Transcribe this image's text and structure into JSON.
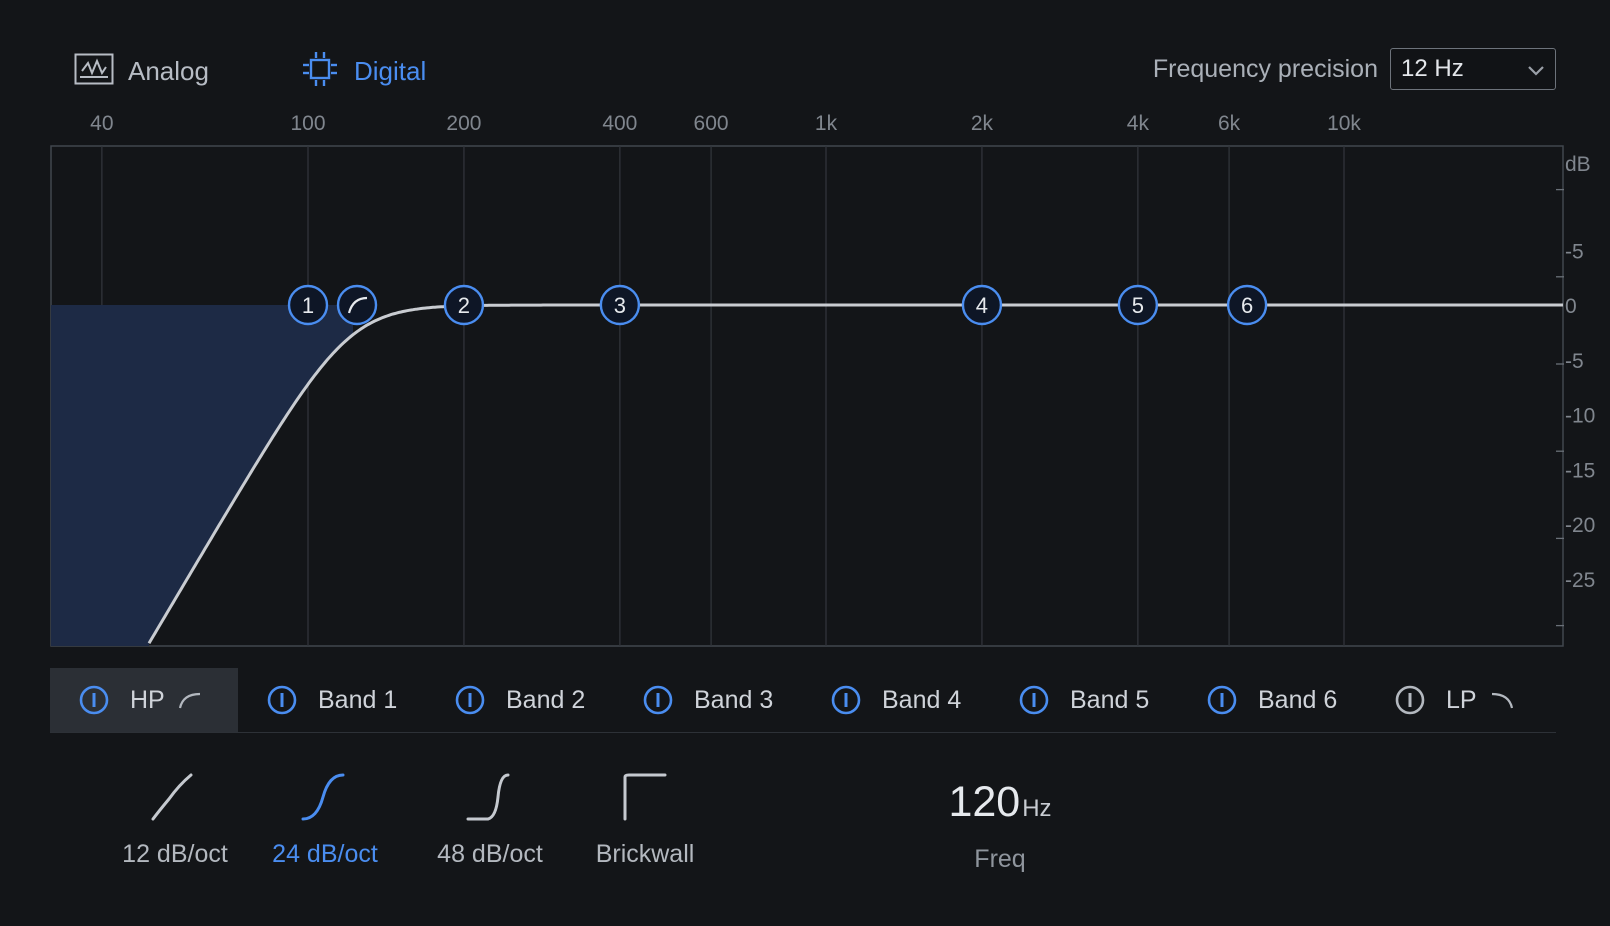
{
  "modes": {
    "analog": {
      "label": "Analog",
      "icon": "analog-meter-icon"
    },
    "digital": {
      "label": "Digital",
      "icon": "chip-icon",
      "selected": true
    }
  },
  "precision": {
    "label": "Frequency precision",
    "value": "12 Hz"
  },
  "graph": {
    "freq_ticks": [
      "40",
      "100",
      "200",
      "400",
      "600",
      "1k",
      "2k",
      "4k",
      "6k",
      "10k"
    ],
    "db_unit": "dB",
    "db_ticks": [
      "-5",
      "0",
      "-5",
      "-10",
      "-15",
      "-20",
      "-25"
    ],
    "hp_node_icon": "hp-curve-icon",
    "nodes": [
      {
        "label": "1",
        "freq_hz": 100,
        "gain_db": 0
      },
      {
        "label": "2",
        "freq_hz": 200,
        "gain_db": 0
      },
      {
        "label": "3",
        "freq_hz": 400,
        "gain_db": 0
      },
      {
        "label": "4",
        "freq_hz": 2000,
        "gain_db": 0
      },
      {
        "label": "5",
        "freq_hz": 4000,
        "gain_db": 0
      },
      {
        "label": "6",
        "freq_hz": 6500,
        "gain_db": 0
      }
    ]
  },
  "tabs": [
    {
      "label": "HP",
      "active": true,
      "curve_icon": "hp-curve-icon"
    },
    {
      "label": "Band 1"
    },
    {
      "label": "Band 2"
    },
    {
      "label": "Band 3"
    },
    {
      "label": "Band 4"
    },
    {
      "label": "Band 5"
    },
    {
      "label": "Band 6"
    },
    {
      "label": "LP",
      "curve_icon": "lp-curve-icon",
      "disabled": true
    }
  ],
  "slopes": [
    {
      "label": "12 dB/oct",
      "icon": "slope-12-icon"
    },
    {
      "label": "24 dB/oct",
      "icon": "slope-24-icon",
      "selected": true
    },
    {
      "label": "48 dB/oct",
      "icon": "slope-48-icon"
    },
    {
      "label": "Brickwall",
      "icon": "brickwall-icon"
    }
  ],
  "freq": {
    "value": "120",
    "unit": "Hz",
    "label": "Freq"
  },
  "colors": {
    "accent": "#4a8df0",
    "background": "#131518",
    "hp_fill": "#1d2a45"
  }
}
